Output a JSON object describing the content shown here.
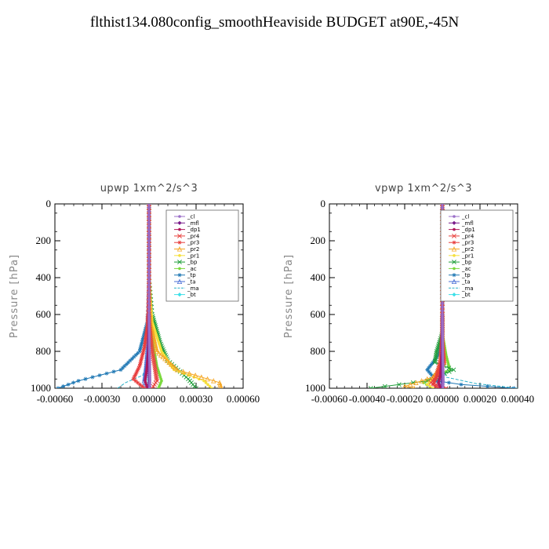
{
  "title": "flthist134.080config_smoothHeaviside  BUDGET at90E,-45N",
  "chart_data": [
    {
      "type": "line",
      "title": "upwp   1xm^2/s^3",
      "ylabel": "Pressure [hPa]",
      "xlim": [
        -0.0006,
        0.0006
      ],
      "ylim": [
        1000,
        0
      ],
      "xticks": [
        "-0.00060",
        "-0.00030",
        "0.00000",
        "0.00030",
        "0.00060"
      ],
      "yticks": [
        "0",
        "200",
        "400",
        "600",
        "800",
        "1000"
      ],
      "legend_placement": "top-right",
      "series": [
        {
          "name": "_cl",
          "color": "#9b6fc8",
          "marker": "circle",
          "points": [
            [
              0,
              0
            ],
            [
              0,
              200
            ],
            [
              0,
              400
            ],
            [
              0,
              600
            ],
            [
              3e-06,
              800
            ],
            [
              5e-06,
              900
            ],
            [
              6e-06,
              960
            ],
            [
              4e-06,
              1000
            ]
          ]
        },
        {
          "name": "_mfl",
          "color": "#7a1b8a",
          "marker": "diamond",
          "points": [
            [
              0,
              0
            ],
            [
              0,
              200
            ],
            [
              0,
              400
            ],
            [
              0,
              600
            ],
            [
              0,
              800
            ],
            [
              3e-06,
              950
            ],
            [
              2e-06,
              1000
            ]
          ]
        },
        {
          "name": "_dp1",
          "color": "#b0185a",
          "marker": "circle",
          "points": [
            [
              0,
              0
            ],
            [
              0,
              400
            ],
            [
              0,
              650
            ],
            [
              -5e-06,
              800
            ],
            [
              -1.5e-05,
              900
            ],
            [
              -2.5e-05,
              960
            ],
            [
              -1e-05,
              1000
            ]
          ]
        },
        {
          "name": "_pr4",
          "color": "#e8403c",
          "marker": "x",
          "points": [
            [
              0,
              0
            ],
            [
              0,
              400
            ],
            [
              0,
              640
            ],
            [
              2e-05,
              800
            ],
            [
              4e-05,
              900
            ],
            [
              5e-05,
              960
            ],
            [
              2e-05,
              1000
            ]
          ]
        },
        {
          "name": "_pr3",
          "color": "#e83c3c",
          "marker": "star",
          "points": [
            [
              0,
              0
            ],
            [
              0,
              400
            ],
            [
              -1e-05,
              660
            ],
            [
              -3e-05,
              780
            ],
            [
              -6e-05,
              880
            ],
            [
              -0.0001,
              950
            ],
            [
              -3e-05,
              1000
            ]
          ]
        },
        {
          "name": "_pr2",
          "color": "#f5a623",
          "marker": "triangle",
          "points": [
            [
              0,
              0
            ],
            [
              0,
              400
            ],
            [
              1e-05,
              650
            ],
            [
              5e-05,
              800
            ],
            [
              0.00018,
              900
            ],
            [
              0.00045,
              970
            ],
            [
              0.00046,
              1000
            ]
          ]
        },
        {
          "name": "_pr1",
          "color": "#f5e03c",
          "marker": "circle",
          "points": [
            [
              0,
              0
            ],
            [
              0,
              400
            ],
            [
              2e-05,
              640
            ],
            [
              8e-05,
              800
            ],
            [
              0.00016,
              900
            ],
            [
              0.00035,
              960
            ],
            [
              0.0004,
              1000
            ]
          ]
        },
        {
          "name": "_bp",
          "color": "#1f9e3a",
          "marker": "x",
          "points": [
            [
              0,
              0
            ],
            [
              0,
              400
            ],
            [
              2e-05,
              600
            ],
            [
              7e-05,
              750
            ],
            [
              0.00012,
              850
            ],
            [
              0.00025,
              950
            ],
            [
              0.0003,
              1000
            ]
          ]
        },
        {
          "name": "_ac",
          "color": "#7ad83c",
          "marker": "circle",
          "points": [
            [
              0,
              0
            ],
            [
              0,
              400
            ],
            [
              1e-05,
              640
            ],
            [
              3e-05,
              780
            ],
            [
              5e-05,
              880
            ],
            [
              8e-05,
              960
            ],
            [
              6e-05,
              1000
            ]
          ]
        },
        {
          "name": "_tp",
          "color": "#1f78b4",
          "marker": "star",
          "points": [
            [
              0,
              0
            ],
            [
              0,
              400
            ],
            [
              -1e-05,
              640
            ],
            [
              -6e-05,
              800
            ],
            [
              -0.00018,
              900
            ],
            [
              -0.00045,
              960
            ],
            [
              -0.00058,
              1000
            ]
          ]
        },
        {
          "name": "_ta",
          "color": "#4a6fd6",
          "marker": "triangle",
          "points": [
            [
              0,
              0
            ],
            [
              0,
              400
            ],
            [
              0,
              640
            ],
            [
              -1e-05,
              800
            ],
            [
              -2e-05,
              900
            ],
            [
              -3e-05,
              960
            ],
            [
              -1e-05,
              1000
            ]
          ]
        },
        {
          "name": "_ma",
          "color": "#2ab0c8",
          "marker": "none",
          "points": [
            [
              0,
              0
            ],
            [
              0,
              400
            ],
            [
              0,
              700
            ],
            [
              -1e-05,
              850
            ],
            [
              -4e-05,
              930
            ],
            [
              -0.00015,
              970
            ],
            [
              -0.0002,
              1000
            ]
          ]
        },
        {
          "name": "_bt",
          "color": "#3ce0e8",
          "marker": "diamond",
          "points": [
            [
              0,
              0
            ],
            [
              0,
              400
            ],
            [
              0,
              600
            ],
            [
              0,
              800
            ],
            [
              0,
              900
            ],
            [
              0,
              960
            ],
            [
              0,
              1000
            ]
          ]
        }
      ]
    },
    {
      "type": "line",
      "title": "vpwp   1xm^2/s^3",
      "ylabel": "Pressure [hPa]",
      "xlim": [
        -0.0006,
        0.0004
      ],
      "ylim": [
        1000,
        0
      ],
      "xticks": [
        "-0.00060",
        "-0.00040",
        "-0.00020",
        "0.00000",
        "0.00020",
        "0.00040"
      ],
      "yticks": [
        "0",
        "200",
        "400",
        "600",
        "800",
        "1000"
      ],
      "legend_placement": "top-right",
      "series": [
        {
          "name": "_cl",
          "color": "#9b6fc8",
          "marker": "circle",
          "points": [
            [
              0,
              0
            ],
            [
              0,
              200
            ],
            [
              0,
              400
            ],
            [
              0,
              600
            ],
            [
              2e-06,
              800
            ],
            [
              4e-06,
              900
            ],
            [
              5e-06,
              960
            ],
            [
              3e-06,
              1000
            ]
          ]
        },
        {
          "name": "_mfl",
          "color": "#7a1b8a",
          "marker": "diamond",
          "points": [
            [
              0,
              0
            ],
            [
              0,
              200
            ],
            [
              0,
              400
            ],
            [
              0,
              600
            ],
            [
              0,
              800
            ],
            [
              2e-06,
              950
            ],
            [
              1e-06,
              1000
            ]
          ]
        },
        {
          "name": "_dp1",
          "color": "#b0185a",
          "marker": "circle",
          "points": [
            [
              0,
              0
            ],
            [
              0,
              400
            ],
            [
              0,
              700
            ],
            [
              -5e-06,
              850
            ],
            [
              -1e-05,
              930
            ],
            [
              -2e-05,
              970
            ],
            [
              -1e-05,
              1000
            ]
          ]
        },
        {
          "name": "_pr4",
          "color": "#e8403c",
          "marker": "x",
          "points": [
            [
              0,
              0
            ],
            [
              0,
              400
            ],
            [
              0,
              700
            ],
            [
              -1e-05,
              850
            ],
            [
              -3e-05,
              930
            ],
            [
              -6e-05,
              970
            ],
            [
              2e-05,
              1000
            ]
          ]
        },
        {
          "name": "_pr3",
          "color": "#e83c3c",
          "marker": "star",
          "points": [
            [
              0,
              0
            ],
            [
              0,
              400
            ],
            [
              0,
              720
            ],
            [
              1e-05,
              860
            ],
            [
              -3e-05,
              940
            ],
            [
              -5e-05,
              980
            ],
            [
              -2e-05,
              1000
            ]
          ]
        },
        {
          "name": "_pr2",
          "color": "#f5a623",
          "marker": "triangle",
          "points": [
            [
              0,
              0
            ],
            [
              0,
              400
            ],
            [
              0,
              720
            ],
            [
              1e-05,
              860
            ],
            [
              -5e-05,
              940
            ],
            [
              -0.0002,
              990
            ],
            [
              -0.00015,
              1000
            ]
          ]
        },
        {
          "name": "_pr1",
          "color": "#f5e03c",
          "marker": "circle",
          "points": [
            [
              0,
              0
            ],
            [
              0,
              400
            ],
            [
              0,
              720
            ],
            [
              -1e-05,
              860
            ],
            [
              -4e-05,
              940
            ],
            [
              -8e-05,
              980
            ],
            [
              -5e-05,
              1000
            ]
          ]
        },
        {
          "name": "_bp",
          "color": "#1f9e3a",
          "marker": "x",
          "points": [
            [
              0,
              0
            ],
            [
              0,
              400
            ],
            [
              0,
              700
            ],
            [
              -3e-05,
              800
            ],
            [
              -4e-05,
              860
            ],
            [
              6e-05,
              900
            ],
            [
              -8e-05,
              960
            ],
            [
              -0.00038,
              1000
            ]
          ]
        },
        {
          "name": "_ac",
          "color": "#7ad83c",
          "marker": "circle",
          "points": [
            [
              0,
              0
            ],
            [
              0,
              400
            ],
            [
              0,
              700
            ],
            [
              2e-05,
              820
            ],
            [
              4e-05,
              900
            ],
            [
              -0.0001,
              970
            ],
            [
              -5e-05,
              1000
            ]
          ]
        },
        {
          "name": "_tp",
          "color": "#1f78b4",
          "marker": "star",
          "points": [
            [
              0,
              0
            ],
            [
              0,
              400
            ],
            [
              0,
              700
            ],
            [
              -2e-05,
              820
            ],
            [
              -8e-05,
              900
            ],
            [
              -3e-05,
              960
            ],
            [
              0.0001,
              980
            ],
            [
              0.00038,
              1000
            ]
          ]
        },
        {
          "name": "_ta",
          "color": "#4a6fd6",
          "marker": "triangle",
          "points": [
            [
              0,
              0
            ],
            [
              0,
              400
            ],
            [
              0,
              700
            ],
            [
              0,
              850
            ],
            [
              -1e-05,
              930
            ],
            [
              -2e-05,
              970
            ],
            [
              -1e-05,
              1000
            ]
          ]
        },
        {
          "name": "_ma",
          "color": "#2ab0c8",
          "marker": "none",
          "points": [
            [
              0,
              0
            ],
            [
              0,
              400
            ],
            [
              0,
              750
            ],
            [
              0,
              880
            ],
            [
              2e-05,
              940
            ],
            [
              0.00018,
              975
            ],
            [
              0.0004,
              1000
            ]
          ]
        },
        {
          "name": "_bt",
          "color": "#3ce0e8",
          "marker": "diamond",
          "points": [
            [
              0,
              0
            ],
            [
              0,
              400
            ],
            [
              0,
              600
            ],
            [
              0,
              800
            ],
            [
              0,
              900
            ],
            [
              0,
              960
            ],
            [
              0,
              1000
            ]
          ]
        }
      ]
    }
  ]
}
